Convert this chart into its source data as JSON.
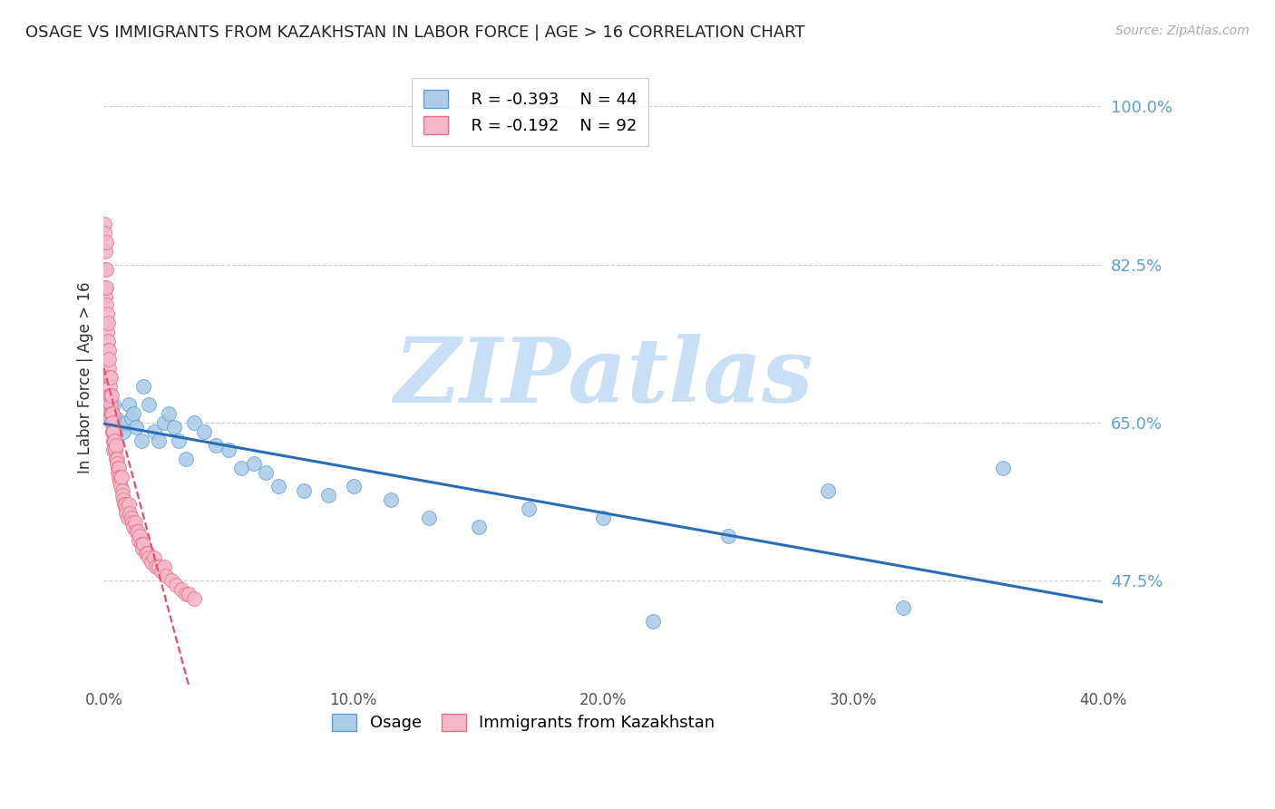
{
  "title": "OSAGE VS IMMIGRANTS FROM KAZAKHSTAN IN LABOR FORCE | AGE > 16 CORRELATION CHART",
  "source": "Source: ZipAtlas.com",
  "ylabel": "In Labor Force | Age > 16",
  "xlim": [
    0.0,
    0.4
  ],
  "ylim": [
    0.36,
    1.04
  ],
  "yticks": [
    1.0,
    0.825,
    0.65,
    0.475
  ],
  "ytick_labels": [
    "100.0%",
    "82.5%",
    "65.0%",
    "47.5%"
  ],
  "xticks": [
    0.0,
    0.1,
    0.2,
    0.3,
    0.4
  ],
  "xtick_labels": [
    "0.0%",
    "10.0%",
    "20.0%",
    "30.0%",
    "40.0%"
  ],
  "grid_color": "#cccccc",
  "background_color": "#ffffff",
  "watermark": "ZIPatlas",
  "watermark_color": "#c8dff5",
  "legend_R_label1": "R = -0.393",
  "legend_N_label1": "N = 44",
  "legend_R_label2": "R = -0.192",
  "legend_N_label2": "N = 92",
  "series": [
    {
      "name": "Osage",
      "R": -0.393,
      "N": 44,
      "color": "#aecce8",
      "edge_color": "#5a9fd4",
      "line_color": "#2a6db5",
      "line_style": "solid",
      "x": [
        0.001,
        0.002,
        0.003,
        0.004,
        0.005,
        0.006,
        0.007,
        0.008,
        0.009,
        0.01,
        0.011,
        0.012,
        0.013,
        0.015,
        0.016,
        0.018,
        0.02,
        0.022,
        0.024,
        0.026,
        0.028,
        0.03,
        0.033,
        0.036,
        0.04,
        0.045,
        0.05,
        0.055,
        0.06,
        0.065,
        0.07,
        0.08,
        0.09,
        0.1,
        0.115,
        0.13,
        0.15,
        0.17,
        0.2,
        0.22,
        0.25,
        0.29,
        0.32,
        0.36
      ],
      "y": [
        0.66,
        0.68,
        0.665,
        0.67,
        0.655,
        0.65,
        0.645,
        0.64,
        0.65,
        0.67,
        0.655,
        0.66,
        0.645,
        0.63,
        0.69,
        0.67,
        0.64,
        0.63,
        0.65,
        0.66,
        0.645,
        0.63,
        0.61,
        0.65,
        0.64,
        0.625,
        0.62,
        0.6,
        0.605,
        0.595,
        0.58,
        0.575,
        0.57,
        0.58,
        0.565,
        0.545,
        0.535,
        0.555,
        0.545,
        0.43,
        0.525,
        0.575,
        0.445,
        0.6
      ]
    },
    {
      "name": "Immigrants from Kazakhstan",
      "R": -0.192,
      "N": 92,
      "color": "#f4b8c8",
      "edge_color": "#e8708a",
      "line_color": "#e05070",
      "line_style": "dashed",
      "x": [
        0.0002,
        0.0003,
        0.0004,
        0.0005,
        0.0005,
        0.0006,
        0.0007,
        0.0008,
        0.0009,
        0.001,
        0.0011,
        0.0012,
        0.0013,
        0.0014,
        0.0015,
        0.0016,
        0.0017,
        0.0018,
        0.0019,
        0.002,
        0.0021,
        0.0022,
        0.0023,
        0.0024,
        0.0025,
        0.0026,
        0.0027,
        0.0028,
        0.0029,
        0.003,
        0.0031,
        0.0032,
        0.0033,
        0.0034,
        0.0035,
        0.0036,
        0.0037,
        0.0038,
        0.0039,
        0.004,
        0.0042,
        0.0044,
        0.0046,
        0.0048,
        0.005,
        0.0052,
        0.0054,
        0.0056,
        0.0058,
        0.006,
        0.0062,
        0.0064,
        0.0066,
        0.0068,
        0.007,
        0.0073,
        0.0076,
        0.0079,
        0.0082,
        0.0085,
        0.0088,
        0.0091,
        0.0095,
        0.01,
        0.0105,
        0.011,
        0.0115,
        0.012,
        0.0125,
        0.013,
        0.0135,
        0.014,
        0.0145,
        0.015,
        0.0155,
        0.016,
        0.017,
        0.0175,
        0.018,
        0.019,
        0.02,
        0.021,
        0.022,
        0.023,
        0.024,
        0.025,
        0.027,
        0.029,
        0.031,
        0.033,
        0.034,
        0.036
      ],
      "y": [
        0.87,
        0.86,
        0.79,
        0.82,
        0.84,
        0.8,
        0.76,
        0.82,
        0.8,
        0.85,
        0.78,
        0.76,
        0.77,
        0.75,
        0.74,
        0.76,
        0.73,
        0.72,
        0.71,
        0.73,
        0.7,
        0.72,
        0.7,
        0.69,
        0.68,
        0.7,
        0.68,
        0.67,
        0.66,
        0.68,
        0.66,
        0.65,
        0.66,
        0.64,
        0.65,
        0.64,
        0.63,
        0.63,
        0.62,
        0.64,
        0.63,
        0.62,
        0.62,
        0.61,
        0.625,
        0.61,
        0.605,
        0.6,
        0.595,
        0.6,
        0.59,
        0.585,
        0.59,
        0.58,
        0.59,
        0.575,
        0.57,
        0.565,
        0.56,
        0.56,
        0.555,
        0.55,
        0.545,
        0.56,
        0.55,
        0.545,
        0.54,
        0.535,
        0.54,
        0.53,
        0.53,
        0.52,
        0.525,
        0.515,
        0.51,
        0.515,
        0.505,
        0.505,
        0.5,
        0.495,
        0.5,
        0.49,
        0.49,
        0.485,
        0.49,
        0.48,
        0.475,
        0.47,
        0.465,
        0.46,
        0.46,
        0.455
      ]
    }
  ]
}
